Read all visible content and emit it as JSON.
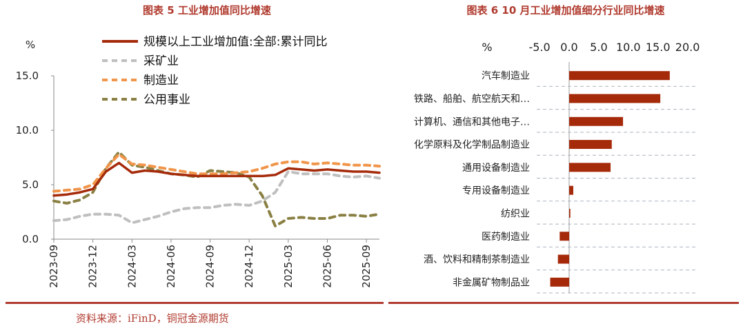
{
  "chart_data": [
    {
      "type": "line",
      "title": "图表 5  工业增加值同比增速",
      "ylabel": "%",
      "ylim": [
        0,
        15
      ],
      "yticks": [
        "0.0",
        "5.0",
        "10.0",
        "15.0"
      ],
      "xticks": [
        "2023-09",
        "2023-12",
        "2024-03",
        "2024-06",
        "2024-09",
        "2024-12",
        "2025-03",
        "2025-06",
        "2025-09"
      ],
      "x": [
        "2023-09",
        "2023-10",
        "2023-11",
        "2023-12",
        "2024-01",
        "2024-02",
        "2024-03",
        "2024-04",
        "2024-05",
        "2024-06",
        "2024-07",
        "2024-08",
        "2024-09",
        "2024-10",
        "2024-11",
        "2024-12",
        "2025-01",
        "2025-02",
        "2025-03",
        "2025-04",
        "2025-05",
        "2025-06",
        "2025-07",
        "2025-08",
        "2025-09",
        "2025-10"
      ],
      "legend_position": "top",
      "series": [
        {
          "name": "规模以上工业增加值:全部:累计同比",
          "style": "solid",
          "color": "#a52a0a",
          "values": [
            4.0,
            4.1,
            4.3,
            4.6,
            6.2,
            7.0,
            6.1,
            6.3,
            6.2,
            6.0,
            5.9,
            5.8,
            5.8,
            5.8,
            5.8,
            5.8,
            5.8,
            5.9,
            6.5,
            6.4,
            6.3,
            6.4,
            6.3,
            6.2,
            6.2,
            6.1
          ]
        },
        {
          "name": "采矿业",
          "style": "dashed",
          "color": "#bfbfbf",
          "values": [
            1.7,
            1.8,
            2.1,
            2.3,
            2.3,
            2.2,
            1.5,
            1.8,
            2.1,
            2.5,
            2.8,
            2.9,
            2.9,
            3.1,
            3.2,
            3.1,
            3.5,
            4.3,
            6.2,
            6.0,
            6.0,
            6.0,
            5.8,
            5.7,
            5.8,
            5.6
          ]
        },
        {
          "name": "制造业",
          "style": "dashed",
          "color": "#f0954a",
          "values": [
            4.4,
            4.5,
            4.6,
            5.0,
            6.5,
            7.8,
            6.9,
            6.8,
            6.6,
            6.4,
            6.2,
            6.0,
            6.0,
            6.0,
            6.1,
            6.2,
            6.5,
            6.9,
            7.1,
            7.1,
            6.9,
            7.0,
            6.9,
            6.8,
            6.8,
            6.7
          ]
        },
        {
          "name": "公用事业",
          "style": "dashed",
          "color": "#8a8044",
          "values": [
            3.5,
            3.3,
            3.6,
            4.3,
            6.5,
            8.0,
            6.8,
            6.6,
            6.3,
            6.0,
            5.9,
            5.7,
            6.3,
            6.2,
            6.1,
            5.7,
            4.0,
            1.2,
            1.9,
            2.0,
            1.9,
            1.9,
            2.2,
            2.2,
            2.1,
            2.3
          ]
        }
      ]
    },
    {
      "type": "bar",
      "orientation": "horizontal",
      "title": "图表  6  10 月工业增加值细分行业同比增速",
      "xlabel": "%",
      "xlim": [
        -5,
        20
      ],
      "xticks": [
        "-5.0",
        "0.0",
        "5.0",
        "10.0",
        "15.0",
        "20.0"
      ],
      "categories": [
        "汽车制造业",
        "铁路、船舶、航空航天和…",
        "计算机、通信和其他电子…",
        "化学原料及化学制品制造业",
        "通用设备制造业",
        "专用设备制造业",
        "纺织业",
        "医药制造业",
        "酒、饮料和精制茶制造业",
        "非金属矿物制品业"
      ],
      "values": [
        17.0,
        15.4,
        9.1,
        7.2,
        7.0,
        0.7,
        0.2,
        -1.6,
        -1.9,
        -3.2
      ],
      "bar_color": "#a52a0a"
    }
  ],
  "source_text": "资料来源：iFinD，铜冠金源期货",
  "rule_color": "#b03a2e"
}
